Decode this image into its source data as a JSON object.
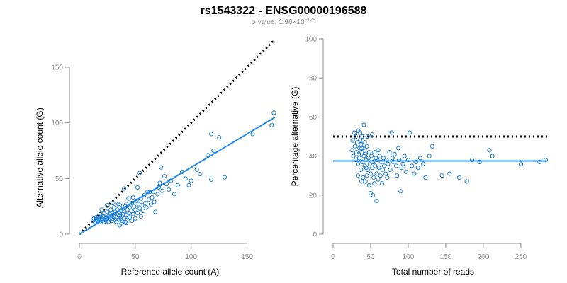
{
  "header": {
    "title": "rs1543322 - ENSG00000196588",
    "pvalue_prefix": "p-value: 1.96×10",
    "pvalue_exponent": "−128"
  },
  "colors": {
    "points": "#1f7fd6",
    "fit": "#1e88e5",
    "reference": "#000000",
    "axis": "#8c8c8c"
  },
  "chart_data": [
    {
      "type": "scatter",
      "name": "allele-counts",
      "xlabel": "Reference allele count (A)",
      "ylabel": "Alternative allele count (G)",
      "xlim": [
        0,
        175
      ],
      "ylim": [
        0,
        150
      ],
      "xticks": [
        0,
        50,
        100,
        150
      ],
      "yticks": [
        0,
        50,
        100,
        150
      ],
      "fit_line": {
        "x": [
          0,
          175
        ],
        "y": [
          0,
          105
        ]
      },
      "reference_line": {
        "x": [
          0,
          175
        ],
        "y": [
          0,
          175
        ],
        "style": "dotted"
      },
      "points": [
        [
          12,
          12
        ],
        [
          13,
          14
        ],
        [
          14,
          11
        ],
        [
          15,
          13
        ],
        [
          15,
          15
        ],
        [
          16,
          12
        ],
        [
          17,
          14
        ],
        [
          17,
          16
        ],
        [
          18,
          11
        ],
        [
          18,
          13
        ],
        [
          19,
          15
        ],
        [
          19,
          18
        ],
        [
          20,
          12
        ],
        [
          20,
          14
        ],
        [
          21,
          16
        ],
        [
          21,
          13
        ],
        [
          22,
          11
        ],
        [
          22,
          19
        ],
        [
          23,
          15
        ],
        [
          23,
          13
        ],
        [
          24,
          17
        ],
        [
          24,
          12
        ],
        [
          25,
          14
        ],
        [
          25,
          20
        ],
        [
          26,
          16
        ],
        [
          26,
          11
        ],
        [
          27,
          18
        ],
        [
          27,
          13
        ],
        [
          28,
          15
        ],
        [
          28,
          22
        ],
        [
          29,
          12
        ],
        [
          29,
          17
        ],
        [
          30,
          14
        ],
        [
          30,
          19
        ],
        [
          31,
          16
        ],
        [
          31,
          24
        ],
        [
          32,
          13
        ],
        [
          32,
          20
        ],
        [
          33,
          18
        ],
        [
          33,
          11
        ],
        [
          34,
          15
        ],
        [
          34,
          22
        ],
        [
          35,
          17
        ],
        [
          35,
          13
        ],
        [
          36,
          19
        ],
        [
          36,
          26
        ],
        [
          37,
          14
        ],
        [
          37,
          21
        ],
        [
          38,
          16
        ],
        [
          38,
          12
        ],
        [
          39,
          23
        ],
        [
          39,
          18
        ],
        [
          40,
          14
        ],
        [
          40,
          20
        ],
        [
          41,
          25
        ],
        [
          41,
          11
        ],
        [
          42,
          17
        ],
        [
          42,
          27
        ],
        [
          43,
          22
        ],
        [
          43,
          13
        ],
        [
          44,
          19
        ],
        [
          45,
          24
        ],
        [
          45,
          15
        ],
        [
          46,
          21
        ],
        [
          47,
          28
        ],
        [
          47,
          12
        ],
        [
          48,
          18
        ],
        [
          49,
          25
        ],
        [
          50,
          22
        ],
        [
          50,
          14
        ],
        [
          51,
          30
        ],
        [
          52,
          19
        ],
        [
          53,
          27
        ],
        [
          54,
          23
        ],
        [
          55,
          32
        ],
        [
          55,
          16
        ],
        [
          56,
          26
        ],
        [
          57,
          21
        ],
        [
          58,
          35
        ],
        [
          59,
          28
        ],
        [
          60,
          24
        ],
        [
          62,
          31
        ],
        [
          63,
          38
        ],
        [
          64,
          27
        ],
        [
          65,
          33
        ],
        [
          67,
          29
        ],
        [
          68,
          20
        ],
        [
          70,
          36
        ],
        [
          71,
          42
        ],
        [
          72,
          46
        ],
        [
          74,
          39
        ],
        [
          76,
          52
        ],
        [
          78,
          45
        ],
        [
          80,
          40
        ],
        [
          82,
          48
        ],
        [
          85,
          36
        ],
        [
          88,
          44
        ],
        [
          92,
          56
        ],
        [
          95,
          50
        ],
        [
          98,
          44
        ],
        [
          100,
          48
        ],
        [
          105,
          58
        ],
        [
          108,
          54
        ],
        [
          115,
          71
        ],
        [
          118,
          90
        ],
        [
          120,
          75
        ],
        [
          125,
          87
        ],
        [
          130,
          51
        ],
        [
          155,
          90
        ],
        [
          172,
          98
        ],
        [
          174,
          109
        ],
        [
          30,
          28
        ],
        [
          35,
          27
        ],
        [
          40,
          41
        ],
        [
          48,
          33
        ],
        [
          54,
          55
        ],
        [
          61,
          38
        ],
        [
          73,
          60
        ],
        [
          118,
          49
        ],
        [
          44,
          32
        ],
        [
          52,
          42
        ],
        [
          66,
          38
        ],
        [
          25,
          26
        ],
        [
          20,
          22
        ],
        [
          38,
          10
        ],
        [
          42,
          10
        ],
        [
          36,
          8
        ]
      ]
    },
    {
      "type": "scatter",
      "name": "percentage-alternative",
      "xlabel": "Total number of reads",
      "ylabel": "Percentage alternative (G)",
      "xlim": [
        0,
        285
      ],
      "ylim": [
        0,
        100
      ],
      "xticks": [
        0,
        50,
        100,
        150,
        200,
        250
      ],
      "yticks": [
        0,
        20,
        40,
        60,
        80,
        100
      ],
      "fit_line": {
        "x": [
          0,
          285
        ],
        "y": [
          37.5,
          37.5
        ]
      },
      "reference_line": {
        "x": [
          0,
          285
        ],
        "y": [
          50,
          50
        ],
        "style": "dotted"
      },
      "points": [
        [
          25,
          43
        ],
        [
          26,
          48
        ],
        [
          27,
          40
        ],
        [
          28,
          52
        ],
        [
          29,
          45
        ],
        [
          30,
          38
        ],
        [
          30,
          50
        ],
        [
          31,
          42
        ],
        [
          32,
          47
        ],
        [
          33,
          36
        ],
        [
          33,
          53
        ],
        [
          34,
          41
        ],
        [
          35,
          44
        ],
        [
          35,
          39
        ],
        [
          36,
          48
        ],
        [
          37,
          33
        ],
        [
          37,
          46
        ],
        [
          38,
          42
        ],
        [
          39,
          37
        ],
        [
          39,
          50
        ],
        [
          40,
          29
        ],
        [
          40,
          44
        ],
        [
          41,
          40
        ],
        [
          42,
          35
        ],
        [
          42,
          47
        ],
        [
          43,
          27
        ],
        [
          43,
          41
        ],
        [
          44,
          38
        ],
        [
          45,
          30
        ],
        [
          45,
          45
        ],
        [
          46,
          33
        ],
        [
          47,
          39
        ],
        [
          48,
          25
        ],
        [
          48,
          42
        ],
        [
          49,
          36
        ],
        [
          50,
          31
        ],
        [
          50,
          21
        ],
        [
          51,
          40
        ],
        [
          52,
          34
        ],
        [
          53,
          20
        ],
        [
          53,
          37
        ],
        [
          54,
          29
        ],
        [
          55,
          42
        ],
        [
          55,
          26
        ],
        [
          56,
          35
        ],
        [
          57,
          39
        ],
        [
          58,
          17
        ],
        [
          58,
          31
        ],
        [
          59,
          38
        ],
        [
          60,
          28
        ],
        [
          61,
          34
        ],
        [
          62,
          40
        ],
        [
          63,
          30
        ],
        [
          64,
          37
        ],
        [
          65,
          26
        ],
        [
          66,
          33
        ],
        [
          67,
          39
        ],
        [
          68,
          35
        ],
        [
          70,
          31
        ],
        [
          71,
          38
        ],
        [
          72,
          29
        ],
        [
          73,
          36
        ],
        [
          75,
          42
        ],
        [
          76,
          33
        ],
        [
          78,
          52
        ],
        [
          79,
          39
        ],
        [
          80,
          37
        ],
        [
          82,
          41
        ],
        [
          84,
          35
        ],
        [
          85,
          30
        ],
        [
          87,
          44
        ],
        [
          88,
          38
        ],
        [
          90,
          22
        ],
        [
          91,
          34
        ],
        [
          93,
          36
        ],
        [
          95,
          40
        ],
        [
          97,
          32
        ],
        [
          100,
          38
        ],
        [
          102,
          52
        ],
        [
          105,
          35
        ],
        [
          108,
          31
        ],
        [
          110,
          37
        ],
        [
          113,
          34
        ],
        [
          116,
          39
        ],
        [
          120,
          36
        ],
        [
          123,
          29
        ],
        [
          128,
          40
        ],
        [
          132,
          45
        ],
        [
          145,
          30
        ],
        [
          155,
          31
        ],
        [
          168,
          29
        ],
        [
          178,
          27
        ],
        [
          185,
          38
        ],
        [
          195,
          37
        ],
        [
          208,
          43
        ],
        [
          212,
          40
        ],
        [
          250,
          36
        ],
        [
          275,
          37
        ],
        [
          283,
          38
        ],
        [
          36,
          52
        ],
        [
          41,
          56
        ],
        [
          46,
          50
        ],
        [
          52,
          51
        ],
        [
          38,
          44
        ],
        [
          44,
          34
        ],
        [
          60,
          43
        ],
        [
          33,
          30
        ],
        [
          38,
          27
        ]
      ]
    }
  ]
}
